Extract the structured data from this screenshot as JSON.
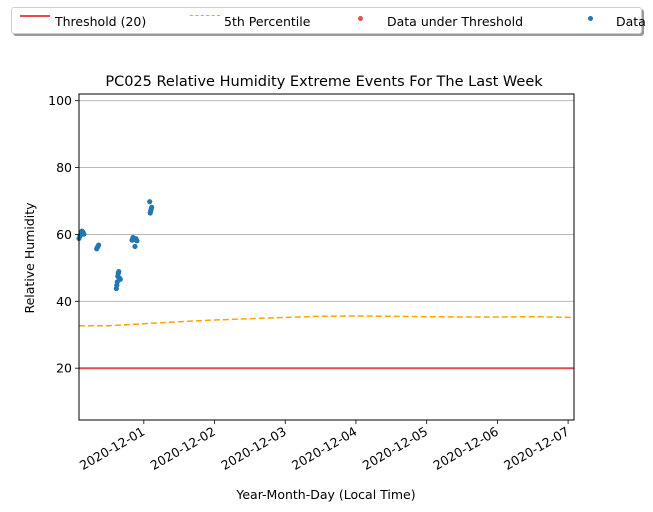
{
  "chart_data": {
    "type": "scatter",
    "title": "PC025 Relative Humidity Extreme Events For The Last Week",
    "xlabel": "Year-Month-Day (Local Time)",
    "ylabel": "Relative Humidity",
    "xlim": [
      "2020-11-30T02:00",
      "2020-12-07T02:00"
    ],
    "ylim": [
      4.5,
      102
    ],
    "yticks": [
      20,
      40,
      60,
      80,
      100
    ],
    "xticks": [
      "2020-12-01",
      "2020-12-02",
      "2020-12-03",
      "2020-12-04",
      "2020-12-05",
      "2020-12-06",
      "2020-12-07"
    ],
    "grid": "horizontal",
    "legend": {
      "placement": "top",
      "entries": [
        "Threshold (20)",
        "5th Percentile",
        "Data under Threshold",
        "Data"
      ]
    },
    "series": [
      {
        "name": "Threshold (20)",
        "kind": "line",
        "color": "#e84a4a",
        "x": [
          "2020-11-30T02:00",
          "2020-12-07T02:00"
        ],
        "y": [
          20,
          20
        ]
      },
      {
        "name": "5th Percentile",
        "kind": "dashed-line",
        "color": "#ffa500",
        "x": [
          "2020-11-30T02:00",
          "2020-11-30T12:00",
          "2020-12-01T00:00",
          "2020-12-01T12:00",
          "2020-12-02T00:00",
          "2020-12-02T12:00",
          "2020-12-03T00:00",
          "2020-12-03T12:00",
          "2020-12-04T00:00",
          "2020-12-04T12:00",
          "2020-12-05T00:00",
          "2020-12-05T12:00",
          "2020-12-06T00:00",
          "2020-12-06T12:00",
          "2020-12-07T02:00"
        ],
        "y": [
          32.7,
          32.7,
          33.3,
          33.9,
          34.4,
          34.8,
          35.2,
          35.5,
          35.6,
          35.5,
          35.4,
          35.3,
          35.3,
          35.4,
          35.2
        ]
      },
      {
        "name": "Data under Threshold",
        "kind": "scatter",
        "color": "#e0514a",
        "x": [],
        "y": []
      },
      {
        "name": "Data",
        "kind": "scatter",
        "color": "#1f77b4",
        "x": [
          "2020-11-30T02:00",
          "2020-11-30T02:20",
          "2020-11-30T02:40",
          "2020-11-30T03:00",
          "2020-11-30T03:20",
          "2020-11-30T03:40",
          "2020-11-30T08:00",
          "2020-11-30T08:20",
          "2020-11-30T08:40",
          "2020-11-30T14:40",
          "2020-11-30T14:50",
          "2020-11-30T15:00",
          "2020-11-30T15:10",
          "2020-11-30T15:20",
          "2020-11-30T15:30",
          "2020-11-30T15:40",
          "2020-11-30T16:00",
          "2020-11-30T20:00",
          "2020-11-30T20:20",
          "2020-11-30T20:40",
          "2020-11-30T21:00",
          "2020-11-30T21:20",
          "2020-11-30T21:40",
          "2020-12-01T02:00",
          "2020-12-01T02:10",
          "2020-12-01T02:20",
          "2020-12-01T02:30",
          "2020-12-01T02:40"
        ],
        "y": [
          58.8,
          59.5,
          60.3,
          61.0,
          60.7,
          60.1,
          55.7,
          56.3,
          56.8,
          43.8,
          44.8,
          45.8,
          47.5,
          48.4,
          48.9,
          47.0,
          46.6,
          58.3,
          59.1,
          58.6,
          56.4,
          58.7,
          58.1,
          69.8,
          66.4,
          67.0,
          67.6,
          68.1
        ]
      }
    ]
  }
}
